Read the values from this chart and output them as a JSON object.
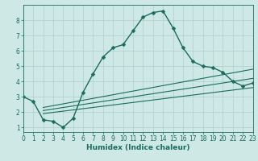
{
  "bg_color": "#cde8e5",
  "grid_color": "#aecfcc",
  "line_color": "#1a6b5e",
  "main_x": [
    0,
    1,
    2,
    3,
    4,
    5,
    6,
    7,
    8,
    9,
    10,
    11,
    12,
    13,
    14,
    15,
    16,
    17,
    18,
    19,
    20,
    21,
    22,
    23
  ],
  "main_y": [
    3.0,
    2.7,
    1.5,
    1.4,
    1.0,
    1.6,
    3.3,
    4.5,
    5.6,
    6.2,
    6.4,
    7.3,
    8.2,
    8.5,
    8.6,
    7.5,
    6.2,
    5.3,
    5.0,
    4.9,
    4.6,
    4.0,
    3.7,
    3.9
  ],
  "line2_x": [
    2,
    23
  ],
  "line2_y": [
    2.3,
    4.8
  ],
  "line3_x": [
    2,
    23
  ],
  "line3_y": [
    2.1,
    4.2
  ],
  "line4_x": [
    2,
    23
  ],
  "line4_y": [
    1.9,
    3.6
  ],
  "xlim": [
    0,
    23
  ],
  "ylim": [
    0.7,
    9.0
  ],
  "xlabel": "Humidex (Indice chaleur)",
  "xticks": [
    0,
    1,
    2,
    3,
    4,
    5,
    6,
    7,
    8,
    9,
    10,
    11,
    12,
    13,
    14,
    15,
    16,
    17,
    18,
    19,
    20,
    21,
    22,
    23
  ],
  "yticks": [
    1,
    2,
    3,
    4,
    5,
    6,
    7,
    8
  ],
  "xlabel_fontsize": 6.5,
  "tick_fontsize": 5.5,
  "marker_size": 2.5,
  "line_width": 1.0
}
